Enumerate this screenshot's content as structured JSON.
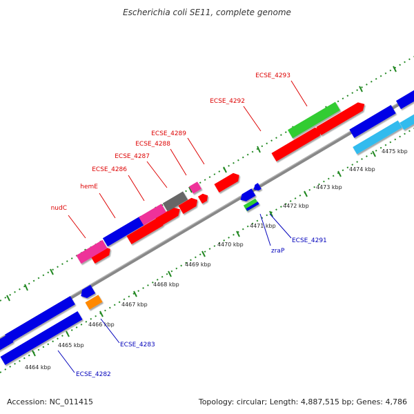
{
  "title": "Escherichia coli SE11, complete genome",
  "footer": {
    "accession": "Accession: NC_011415",
    "summary": "Topology: circular; Length: 4,887,515 bp; Genes: 4,786"
  },
  "scale_labels": [
    "4464 kbp",
    "4465 kbp",
    "4466 kbp",
    "4467 kbp",
    "4468 kbp",
    "4469 kbp",
    "4470 kbp",
    "4471 kbp",
    "4472 kbp",
    "4473 kbp",
    "4474 kbp",
    "4475 kbp"
  ],
  "colors": {
    "red": "#ff0000",
    "blue": "#0000e6",
    "magenta": "#ee3399",
    "gray": "#666666",
    "green": "#33cc33",
    "cyan": "#33bbee",
    "orange": "#ff8800",
    "label_top": "#dd0000",
    "label_bottom": "#0000bb",
    "tick": "#228822"
  },
  "top_gene_labels": [
    "nudC",
    "hemE",
    "ECSE_4286",
    "ECSE_4287",
    "ECSE_4288",
    "ECSE_4289",
    "ECSE_4292",
    "ECSE_4293"
  ],
  "bottom_gene_labels": [
    "ECSE_4291",
    "zraP",
    "ECSE_4283",
    "ECSE_4282"
  ]
}
